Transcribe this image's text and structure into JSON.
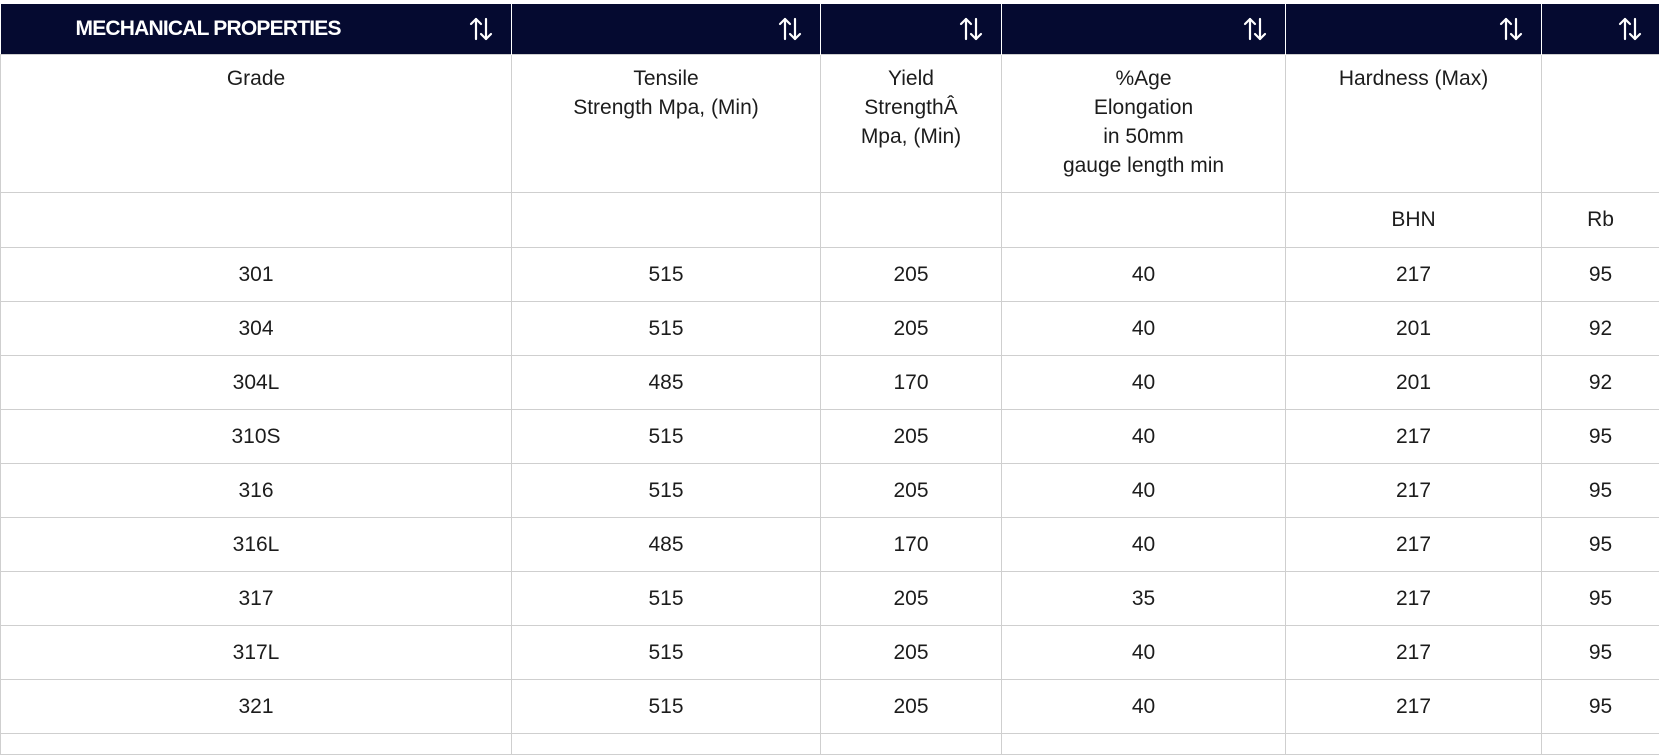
{
  "header": {
    "title": "MECHANICAL PROPERTIES",
    "sort_icon": "sort-arrows-icon"
  },
  "columns": [
    {
      "label": "Grade"
    },
    {
      "label": "Tensile\nStrength Mpa, (Min)"
    },
    {
      "label": "Yield\nStrengthÂ\nMpa, (Min)"
    },
    {
      "label": "%Age\nElongation\nin 50mm\ngauge length min"
    },
    {
      "label": "Hardness (Max)"
    },
    {
      "label": ""
    }
  ],
  "units": [
    "",
    "",
    "",
    "",
    "BHN",
    "Rb"
  ],
  "rows": [
    [
      "301",
      "515",
      "205",
      "40",
      "217",
      "95"
    ],
    [
      "304",
      "515",
      "205",
      "40",
      "201",
      "92"
    ],
    [
      "304L",
      "485",
      "170",
      "40",
      "201",
      "92"
    ],
    [
      "310S",
      "515",
      "205",
      "40",
      "217",
      "95"
    ],
    [
      "316",
      "515",
      "205",
      "40",
      "217",
      "95"
    ],
    [
      "316L",
      "485",
      "170",
      "40",
      "217",
      "95"
    ],
    [
      "317",
      "515",
      "205",
      "35",
      "217",
      "95"
    ],
    [
      "317L",
      "515",
      "205",
      "40",
      "217",
      "95"
    ],
    [
      "321",
      "515",
      "205",
      "40",
      "217",
      "95"
    ]
  ],
  "colors": {
    "header_bg": "#050a30",
    "header_text": "#ffffff",
    "grid_line": "#cfcfcf"
  }
}
